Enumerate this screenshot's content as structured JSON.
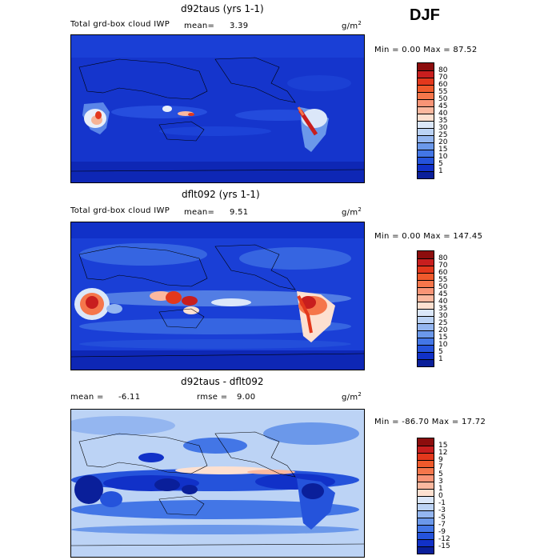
{
  "season": "DJF",
  "panels": [
    {
      "title": "d92taus (yrs 1-1)",
      "subtitle": "Total grd-box cloud IWP",
      "mean_label": "mean=",
      "mean_value": "3.39",
      "units": "g/m",
      "units_exp": "2",
      "minmax": "Min =    0.00 Max =   87.52",
      "colorbar_labels": [
        "80",
        "70",
        "60",
        "55",
        "50",
        "45",
        "40",
        "35",
        "30",
        "25",
        "20",
        "15",
        "10",
        "5",
        "1"
      ],
      "colorbar_colors": [
        "#8c0d0d",
        "#c81e1e",
        "#e3381c",
        "#ef5a2c",
        "#f5764b",
        "#f99476",
        "#fbb89f",
        "#fde0d0",
        "#dbe7f9",
        "#bcd3f5",
        "#94b6f0",
        "#6b98ea",
        "#4376e6",
        "#2553db",
        "#1131c8",
        "#0a1f9a"
      ]
    },
    {
      "title": "dflt092 (yrs 1-1)",
      "subtitle": "Total grd-box cloud IWP",
      "mean_label": "mean=",
      "mean_value": "9.51",
      "units": "g/m",
      "units_exp": "2",
      "minmax": "Min =    0.00 Max = 147.45",
      "colorbar_labels": [
        "80",
        "70",
        "60",
        "55",
        "50",
        "45",
        "40",
        "35",
        "30",
        "25",
        "20",
        "15",
        "10",
        "5",
        "1"
      ],
      "colorbar_colors": [
        "#8c0d0d",
        "#c81e1e",
        "#e3381c",
        "#ef5a2c",
        "#f5764b",
        "#f99476",
        "#fbb89f",
        "#fde0d0",
        "#dbe7f9",
        "#bcd3f5",
        "#94b6f0",
        "#6b98ea",
        "#4376e6",
        "#2553db",
        "#1131c8",
        "#0a1f9a"
      ]
    },
    {
      "title": "d92taus - dflt092",
      "mean_label": "mean =",
      "mean_value": "-6.11",
      "rmse_label": "rmse =",
      "rmse_value": "9.00",
      "units": "g/m",
      "units_exp": "2",
      "minmax": "Min = -86.70 Max =   17.72",
      "colorbar_labels": [
        "15",
        "12",
        "9",
        "7",
        "5",
        "3",
        "1",
        "0",
        "-1",
        "-3",
        "-5",
        "-7",
        "-9",
        "-12",
        "-15"
      ],
      "colorbar_colors": [
        "#8c0d0d",
        "#c81e1e",
        "#e3381c",
        "#ef5a2c",
        "#f5764b",
        "#f99476",
        "#fbb89f",
        "#fde0d0",
        "#dbe7f9",
        "#bcd3f5",
        "#94b6f0",
        "#6b98ea",
        "#4376e6",
        "#2553db",
        "#1131c8",
        "#0a1f9a"
      ]
    }
  ]
}
